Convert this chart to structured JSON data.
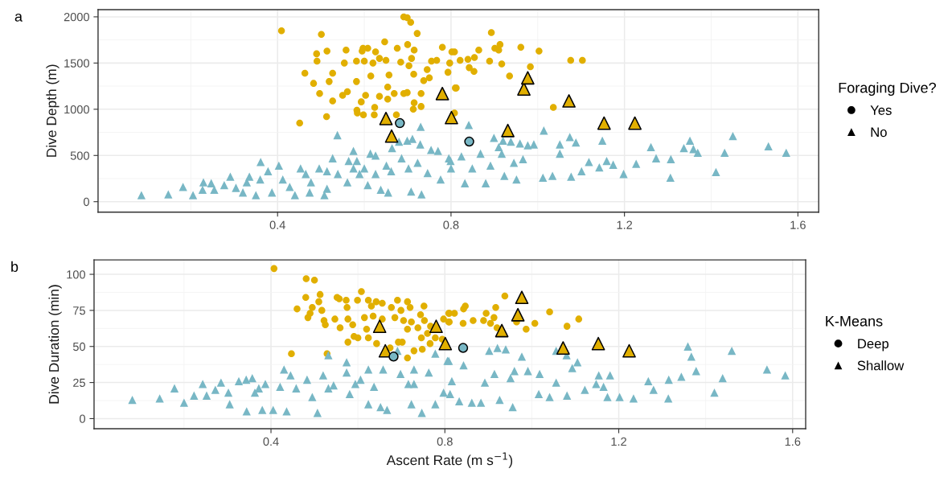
{
  "chart_data": [
    {
      "type": "scatter",
      "title": "a",
      "ylabel": "Dive Depth (m)",
      "legend_title": "Foraging Dive?",
      "legend": "right",
      "grid": true,
      "xlim": [
        -0.014,
        1.648
      ],
      "xticks": [
        0.4,
        0.8,
        1.2,
        1.6
      ],
      "ylim": [
        -113,
        2078
      ],
      "yticks": [
        0,
        500,
        1000,
        1500,
        2000
      ],
      "series": [
        {
          "name": "Yes",
          "color": "#e1af00",
          "marker": "circle",
          "x": [
            0.409,
            0.501,
            0.451,
            0.463,
            0.49,
            0.491,
            0.483,
            0.497,
            0.513,
            0.527,
            0.514,
            0.527,
            0.519,
            0.558,
            0.554,
            0.55,
            0.561,
            0.583,
            0.584,
            0.582,
            0.595,
            0.597,
            0.608,
            0.598,
            0.593,
            0.603,
            0.582,
            0.6,
            0.615,
            0.62,
            0.626,
            0.647,
            0.635,
            0.65,
            0.657,
            0.624,
            0.623,
            0.635,
            0.654,
            0.669,
            0.654,
            0.674,
            0.676,
            0.691,
            0.699,
            0.707,
            0.722,
            0.7,
            0.715,
            0.709,
            0.684,
            0.703,
            0.714,
            0.691,
            0.699,
            0.715,
            0.731,
            0.713,
            0.731,
            0.737,
            0.75,
            0.745,
            0.755,
            0.767,
            0.78,
            0.797,
            0.793,
            0.808,
            0.81,
            0.808,
            0.802,
            0.821,
            0.864,
            0.893,
            0.901,
            0.913,
            0.91,
            0.889,
            0.917,
            0.854,
            0.839,
            0.842,
            0.853,
            0.812,
            0.935,
            0.961,
            0.983,
            1.003,
            1.036,
            1.076,
            1.103
          ],
          "values": [
            1850,
            1810,
            850,
            1390,
            1600,
            1520,
            1280,
            1170,
            920,
            1090,
            1630,
            1390,
            1300,
            1640,
            1500,
            1150,
            1190,
            990,
            960,
            1300,
            1630,
            1660,
            1660,
            940,
            1080,
            1150,
            1520,
            1520,
            1360,
            1500,
            1620,
            1730,
            1550,
            1530,
            1370,
            1020,
            940,
            1140,
            1240,
            1170,
            1110,
            940,
            1660,
            2000,
            1990,
            1940,
            1820,
            1700,
            1640,
            1550,
            1510,
            1470,
            1380,
            1170,
            1180,
            1070,
            1030,
            1000,
            1170,
            1310,
            1340,
            1430,
            1520,
            1530,
            1670,
            1500,
            1400,
            1620,
            1230,
            960,
            1620,
            1530,
            1640,
            1830,
            1660,
            1700,
            1640,
            1520,
            1490,
            1560,
            1540,
            1450,
            1410,
            1230,
            1360,
            1670,
            1460,
            1630,
            1020,
            1530,
            1530
          ]
        },
        {
          "name": "No",
          "color": "#78b7c5",
          "marker": "triangle",
          "x": [
            0.086,
            0.148,
            0.182,
            0.205,
            0.229,
            0.227,
            0.247,
            0.254,
            0.291,
            0.277,
            0.304,
            0.32,
            0.335,
            0.35,
            0.361,
            0.36,
            0.378,
            0.387,
            0.403,
            0.412,
            0.44,
            0.428,
            0.453,
            0.477,
            0.474,
            0.496,
            0.508,
            0.514,
            0.527,
            0.538,
            0.539,
            0.564,
            0.575,
            0.561,
            0.583,
            0.589,
            0.608,
            0.614,
            0.626,
            0.638,
            0.655,
            0.651,
            0.664,
            0.68,
            0.686,
            0.699,
            0.711,
            0.702,
            0.708,
            0.729,
            0.73,
            0.732,
            0.723,
            0.754,
            0.77,
            0.776,
            0.795,
            0.514,
            0.6,
            0.662,
            0.746,
            0.8,
            0.465,
            0.329,
            0.575,
            0.626,
            0.841,
            0.799,
            0.824,
            0.849,
            0.832,
            0.868,
            0.899,
            0.92,
            0.938,
            0.959,
            0.977,
            0.991,
            0.91,
            0.917,
            0.891,
            0.88,
            0.923,
            0.951,
            0.966,
            0.945,
            1.014,
            1.051,
            1.051,
            1.074,
            1.088,
            1.012,
            1.034,
            1.077,
            1.101,
            1.118,
            1.142,
            1.149,
            1.159,
            1.174,
            1.198,
            1.227,
            1.261,
            1.273,
            1.307,
            1.306,
            1.337,
            1.351,
            1.359,
            1.369,
            1.411,
            1.431,
            1.45,
            1.532,
            1.573
          ],
          "values": [
            70,
            80,
            160,
            70,
            210,
            130,
            200,
            130,
            270,
            180,
            150,
            100,
            270,
            70,
            430,
            240,
            330,
            100,
            390,
            240,
            70,
            160,
            360,
            210,
            100,
            360,
            70,
            140,
            470,
            720,
            300,
            440,
            550,
            210,
            440,
            300,
            180,
            520,
            500,
            130,
            100,
            390,
            580,
            650,
            470,
            660,
            680,
            360,
            110,
            620,
            810,
            80,
            420,
            560,
            550,
            240,
            470,
            330,
            360,
            330,
            310,
            360,
            300,
            210,
            360,
            300,
            830,
            440,
            490,
            360,
            200,
            520,
            690,
            660,
            650,
            630,
            610,
            620,
            590,
            520,
            390,
            200,
            280,
            240,
            460,
            420,
            770,
            620,
            520,
            700,
            640,
            260,
            280,
            270,
            330,
            430,
            370,
            660,
            440,
            400,
            300,
            410,
            590,
            470,
            460,
            260,
            580,
            660,
            570,
            530,
            320,
            530,
            710,
            600,
            530
          ]
        },
        {
          "color": "#e1af00",
          "marker": "triangle",
          "x": [
            0.65,
            0.663,
            0.78,
            0.801,
            0.931,
            0.968,
            0.977,
            1.072,
            1.153,
            1.224
          ],
          "values": [
            900,
            710,
            1170,
            910,
            770,
            1220,
            1340,
            1090,
            850,
            850
          ]
        },
        {
          "color": "#78b7c5",
          "marker": "circle",
          "x": [
            0.682,
            0.842
          ],
          "values": [
            850,
            650
          ]
        }
      ]
    },
    {
      "type": "scatter",
      "title": "b",
      "xlabel": "Ascent Rate (m s$^{−1}$)",
      "ylabel": "Dive Duration (min)",
      "legend_title": "K-Means",
      "legend": "right",
      "grid": true,
      "xlim": [
        -0.007,
        1.63
      ],
      "xticks": [
        0.4,
        0.8,
        1.2,
        1.6
      ],
      "ylim": [
        -7,
        110
      ],
      "yticks": [
        0,
        25,
        50,
        75,
        100
      ],
      "series": [
        {
          "name": "Deep",
          "color": "#e1af00",
          "marker": "circle",
          "x": [
            0.407,
            0.481,
            0.5,
            0.513,
            0.608,
            0.48,
            0.51,
            0.495,
            0.49,
            0.485,
            0.46,
            0.517,
            0.522,
            0.525,
            0.552,
            0.557,
            0.573,
            0.599,
            0.575,
            0.547,
            0.559,
            0.577,
            0.588,
            0.577,
            0.591,
            0.6,
            0.624,
            0.631,
            0.642,
            0.656,
            0.635,
            0.615,
            0.62,
            0.624,
            0.643,
            0.674,
            0.656,
            0.677,
            0.685,
            0.691,
            0.714,
            0.699,
            0.72,
            0.714,
            0.705,
            0.723,
            0.693,
            0.702,
            0.714,
            0.729,
            0.738,
            0.746,
            0.752,
            0.744,
            0.753,
            0.748,
            0.76,
            0.767,
            0.778,
            0.766,
            0.797,
            0.81,
            0.81,
            0.794,
            0.447,
            0.529,
            0.809,
            0.822,
            0.809,
            0.847,
            0.843,
            0.842,
            0.865,
            0.895,
            0.889,
            0.905,
            0.913,
            0.917,
            0.92,
            0.938,
            0.965,
            0.987,
            1.007,
            1.041,
            1.081,
            1.108
          ],
          "values": [
            104,
            97,
            96,
            86,
            88,
            84,
            81,
            77,
            73,
            70,
            76,
            75,
            68,
            65,
            84,
            83,
            82,
            82,
            77,
            69,
            63,
            69,
            65,
            53,
            57,
            56,
            82,
            78,
            81,
            80,
            71,
            70,
            62,
            56,
            52,
            49,
            69,
            77,
            70,
            82,
            81,
            75,
            77,
            62,
            68,
            67,
            53,
            53,
            42,
            47,
            63,
            56,
            78,
            72,
            68,
            48,
            59,
            64,
            56,
            52,
            69,
            73,
            67,
            55,
            45,
            45,
            73,
            73,
            67,
            78,
            76,
            66,
            68,
            73,
            68,
            66,
            70,
            77,
            63,
            85,
            67,
            62,
            66,
            74,
            64,
            69
          ]
        },
        {
          "name": "Shallow",
          "color": "#78b7c5",
          "marker": "triangle",
          "x": [
            0.081,
            0.144,
            0.178,
            0.2,
            0.223,
            0.243,
            0.252,
            0.272,
            0.285,
            0.302,
            0.305,
            0.326,
            0.343,
            0.344,
            0.357,
            0.363,
            0.38,
            0.387,
            0.405,
            0.43,
            0.436,
            0.445,
            0.458,
            0.483,
            0.507,
            0.495,
            0.52,
            0.532,
            0.544,
            0.574,
            0.574,
            0.581,
            0.606,
            0.624,
            0.624,
            0.658,
            0.652,
            0.667,
            0.691,
            0.698,
            0.716,
            0.723,
            0.729,
            0.747,
            0.763,
            0.778,
            0.778,
            0.797,
            0.806,
            0.816,
            0.421,
            0.532,
            0.637,
            0.729,
            0.372,
            0.594,
            0.809,
            0.843,
            0.812,
            0.833,
            0.862,
            0.902,
            0.921,
            0.94,
            0.914,
            0.892,
            0.883,
            0.926,
            0.956,
            0.96,
            0.977,
            0.991,
            0.951,
            1.018,
            1.056,
            1.016,
            1.041,
            1.081,
            1.056,
            1.08,
            1.105,
            1.093,
            1.122,
            1.154,
            1.18,
            1.148,
            1.165,
            1.174,
            1.202,
            1.234,
            1.268,
            1.28,
            1.314,
            1.315,
            1.344,
            1.359,
            1.367,
            1.378,
            1.42,
            1.439,
            1.46,
            1.541,
            1.583
          ],
          "values": [
            13,
            14,
            21,
            11,
            16,
            24,
            16,
            20,
            25,
            18,
            10,
            26,
            27,
            5,
            28,
            18,
            6,
            24,
            6,
            34,
            5,
            30,
            21,
            27,
            4,
            15,
            30,
            44,
            23,
            39,
            32,
            17,
            27,
            34,
            10,
            34,
            8,
            6,
            47,
            31,
            24,
            10,
            34,
            4,
            32,
            10,
            45,
            18,
            40,
            26,
            22,
            21,
            22,
            24,
            21,
            24,
            40,
            37,
            17,
            12,
            11,
            47,
            49,
            48,
            31,
            25,
            11,
            13,
            8,
            33,
            43,
            33,
            28,
            31,
            25,
            17,
            15,
            16,
            47,
            44,
            39,
            35,
            20,
            30,
            30,
            24,
            22,
            15,
            15,
            14,
            26,
            20,
            14,
            27,
            29,
            50,
            43,
            33,
            18,
            28,
            47,
            34,
            30
          ]
        },
        {
          "color": "#e1af00",
          "marker": "triangle",
          "x": [
            0.65,
            0.663,
            0.78,
            0.801,
            0.931,
            0.968,
            0.977,
            1.072,
            1.153,
            1.224
          ],
          "values": [
            64,
            47,
            64,
            52,
            61,
            72,
            84,
            49,
            52,
            47
          ]
        },
        {
          "color": "#78b7c5",
          "marker": "circle",
          "x": [
            0.682,
            0.842
          ],
          "values": [
            43,
            49
          ]
        }
      ]
    }
  ]
}
